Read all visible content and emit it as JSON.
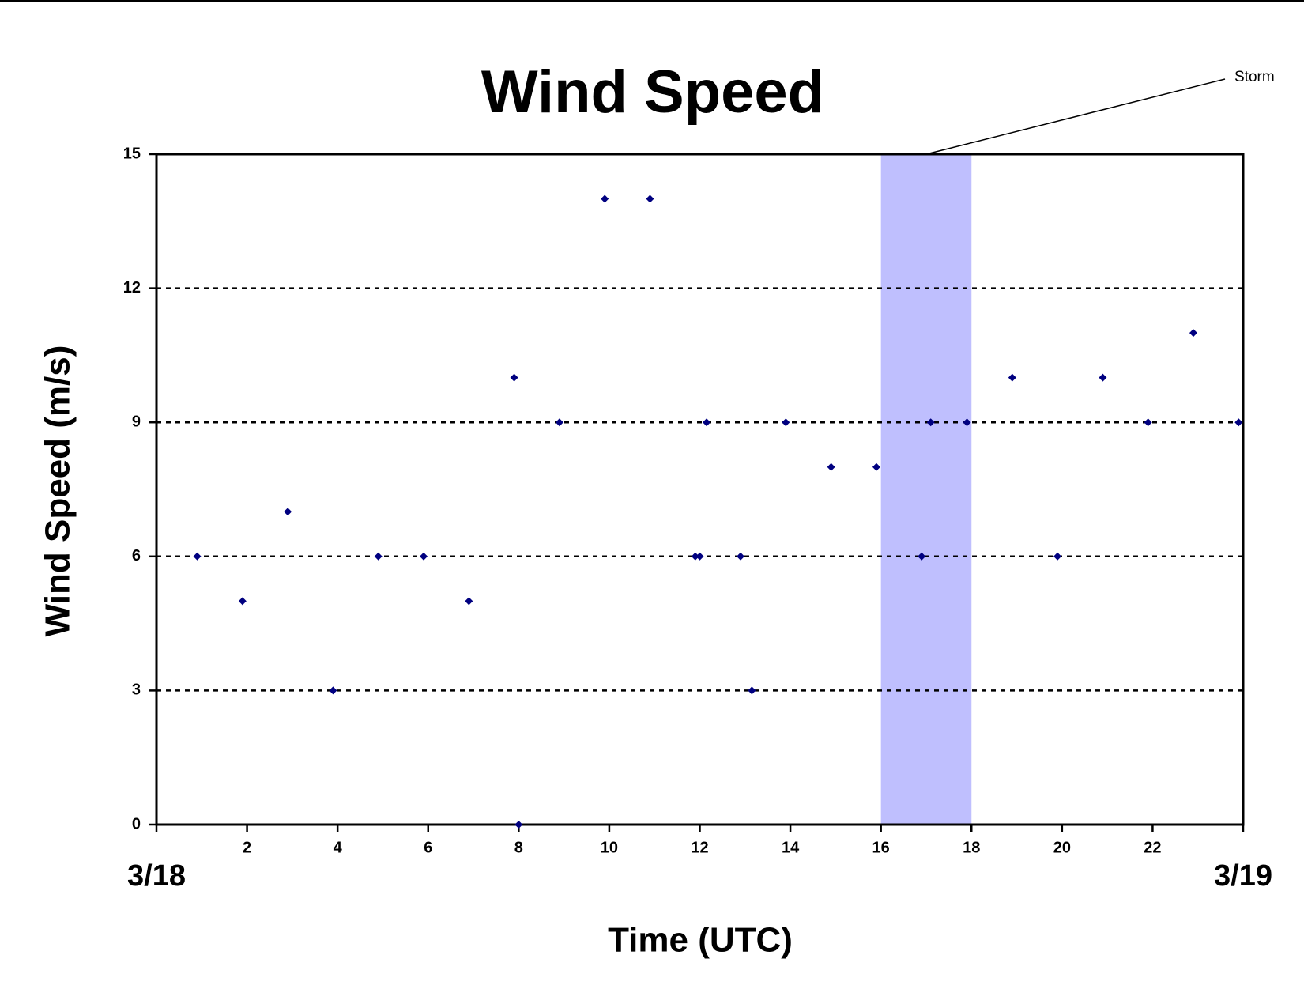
{
  "chart_data": {
    "type": "scatter",
    "title": "Wind Speed",
    "x_label": "Time (UTC)",
    "y_label": "Wind Speed (m/s)",
    "series": [
      {
        "color": "#000080",
        "x": [
          0.9,
          1.9,
          2.9,
          3.9,
          4.9,
          5.9,
          6.9,
          7.9,
          8.0,
          8.9,
          9.9,
          10.9,
          11.9,
          12.0,
          12.15,
          12.9,
          13.15,
          13.9,
          14.9,
          15.9,
          16.9,
          17.1,
          17.9,
          18.9,
          19.9,
          20.9,
          21.9,
          22.9,
          23.9
        ],
        "values": [
          6,
          5,
          7,
          3,
          6,
          6,
          5,
          10,
          0,
          9,
          14,
          14,
          6,
          6,
          9,
          6,
          3,
          9,
          8,
          8,
          6,
          9,
          9,
          10,
          6,
          10,
          9,
          11,
          9
        ]
      }
    ],
    "shaded_region": {
      "x": [
        16,
        18
      ],
      "label": "Storm",
      "color": "#bfbffe"
    },
    "xlim": [
      0,
      24
    ],
    "xticks": [
      {
        "value": 0,
        "label": "3/18"
      },
      2,
      4,
      6,
      8,
      10,
      12,
      14,
      16,
      18,
      20,
      22,
      {
        "value": 24,
        "label": "3/19"
      }
    ],
    "ylim": [
      0,
      15
    ],
    "yticks": [
      0,
      3,
      6,
      9,
      12,
      15
    ],
    "grid": true
  }
}
